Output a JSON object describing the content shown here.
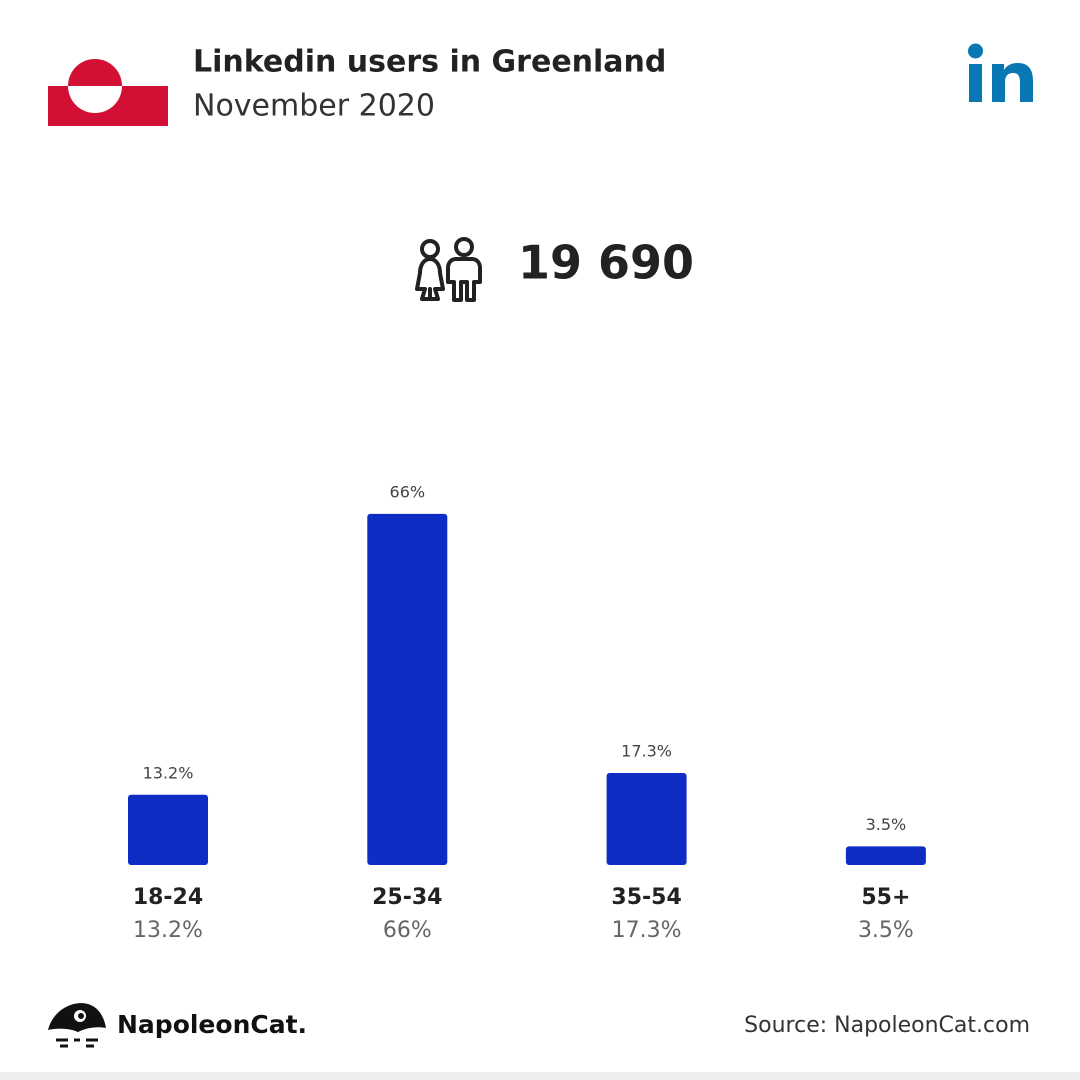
{
  "chart_data": {
    "type": "bar",
    "title": "Linkedin users in Greenland",
    "subtitle": "November 2020",
    "total_users": "19 690",
    "categories": [
      "18-24",
      "25-34",
      "35-54",
      "55+"
    ],
    "values": [
      13.2,
      66,
      17.3,
      3.5
    ],
    "value_labels": [
      "13.2%",
      "66%",
      "17.3%",
      "3.5%"
    ],
    "color": "#0f2cc4",
    "brand": "NapoleonCat.",
    "source": "Source: NapoleonCat.com"
  }
}
